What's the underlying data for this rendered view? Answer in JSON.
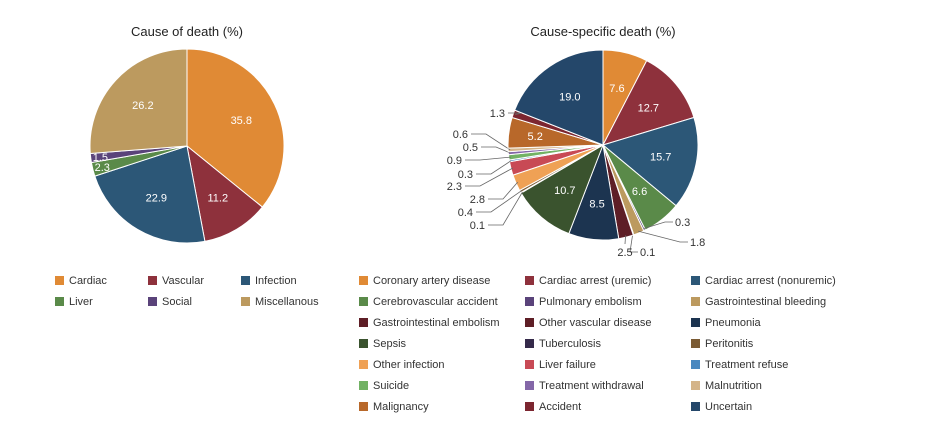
{
  "chart_data": [
    {
      "type": "pie",
      "title": "Cause of death (%)",
      "start": "top-clockwise",
      "slices": [
        {
          "label": "Cardiac",
          "value": 35.8,
          "color": "#E08A35"
        },
        {
          "label": "Vascular",
          "value": 11.2,
          "color": "#8E313C"
        },
        {
          "label": "Infection",
          "value": 22.9,
          "color": "#2C5777"
        },
        {
          "label": "Liver",
          "value": 2.3,
          "color": "#5A8A49"
        },
        {
          "label": "Social",
          "value": 1.5,
          "color": "#5A437A"
        },
        {
          "label": "Miscellanous",
          "value": 26.2,
          "color": "#BC9A5F"
        }
      ],
      "legend_position": "bottom"
    },
    {
      "type": "pie",
      "title": "Cause-specific death (%)",
      "start": "top-clockwise",
      "slices": [
        {
          "label": "Coronary artery disease",
          "value": 7.6,
          "color": "#E08A35"
        },
        {
          "label": "Cardiac arrest (uremic)",
          "value": 12.7,
          "color": "#8E313C"
        },
        {
          "label": "Cardiac arrest (nonuremic)",
          "value": 15.7,
          "color": "#2C5777"
        },
        {
          "label": "Cerebrovascular accident",
          "value": 6.6,
          "color": "#5A8A49"
        },
        {
          "label": "Pulmonary embolism",
          "value": 0.3,
          "color": "#5A437A"
        },
        {
          "label": "Gastrointestinal bleeding",
          "value": 1.8,
          "color": "#BC9A5F"
        },
        {
          "label": "Gastrointestinal embolism",
          "value": 0.1,
          "color": "#5E1E26"
        },
        {
          "label": "Other vascular disease",
          "value": 2.5,
          "color": "#5E1E26"
        },
        {
          "label": "Pneumonia",
          "value": 8.5,
          "color": "#1C3450"
        },
        {
          "label": "Sepsis",
          "value": 10.7,
          "color": "#3A532E"
        },
        {
          "label": "Tuberculosis",
          "value": 0.1,
          "color": "#352A4A"
        },
        {
          "label": "Peritonitis",
          "value": 0.4,
          "color": "#7A5B34"
        },
        {
          "label": "Other infection",
          "value": 2.8,
          "color": "#EFA155"
        },
        {
          "label": "Liver failure",
          "value": 2.3,
          "color": "#C84A55"
        },
        {
          "label": "Treatment refuse",
          "value": 0.3,
          "color": "#4A88BF"
        },
        {
          "label": "Suicide",
          "value": 0.9,
          "color": "#72B264"
        },
        {
          "label": "Treatment withdrawal",
          "value": 0.5,
          "color": "#8467A8"
        },
        {
          "label": "Malnutrition",
          "value": 0.6,
          "color": "#D4B489"
        },
        {
          "label": "Malignancy",
          "value": 5.2,
          "color": "#B8682A"
        },
        {
          "label": "Accident",
          "value": 1.3,
          "color": "#7C2630"
        },
        {
          "label": "Uncertain",
          "value": 19.0,
          "color": "#24476A"
        }
      ],
      "legend_position": "bottom"
    }
  ]
}
